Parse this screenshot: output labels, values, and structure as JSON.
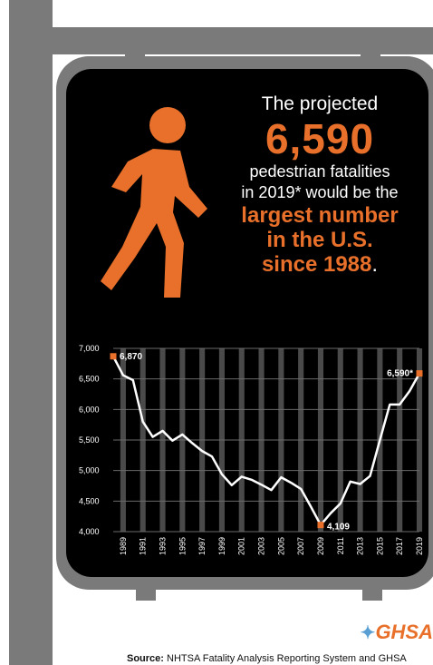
{
  "headline": {
    "lead": "The projected",
    "number": "6,590",
    "line1": "pedestrian fatalities",
    "line2": "in 2019* would be the",
    "emph1": "largest number",
    "emph2": "in the U.S.",
    "emph3": "since 1988",
    "period": "."
  },
  "colors": {
    "accent": "#e8702a",
    "sign": "#000000",
    "pole": "#7a7a7a",
    "line": "#ffffff",
    "stripe": "#4a4a4a"
  },
  "chart_data": {
    "type": "line",
    "title": "",
    "xlabel": "",
    "ylabel": "",
    "ylim": [
      4000,
      7000
    ],
    "yticks": [
      "7,000",
      "6,500",
      "6,000",
      "5,500",
      "5,000",
      "4,500",
      "4,000"
    ],
    "ytick_values": [
      7000,
      6500,
      6000,
      5500,
      5000,
      4500,
      4000
    ],
    "xtick_labels": [
      "1989",
      "1991",
      "1993",
      "1995",
      "1997",
      "1999",
      "2001",
      "2003",
      "2005",
      "2007",
      "2009",
      "2011",
      "2013",
      "2015",
      "2017",
      "2019"
    ],
    "grid": true,
    "series": [
      {
        "x": [
          1988,
          1989,
          1990,
          1991,
          1992,
          1993,
          1994,
          1995,
          1996,
          1997,
          1998,
          1999,
          2000,
          2001,
          2002,
          2003,
          2004,
          2005,
          2006,
          2007,
          2008,
          2009,
          2010,
          2011,
          2012,
          2013,
          2014,
          2015,
          2016,
          2017,
          2018,
          2019
        ],
        "values": [
          6870,
          6560,
          6480,
          5800,
          5550,
          5650,
          5490,
          5590,
          5450,
          5320,
          5230,
          4940,
          4760,
          4900,
          4850,
          4770,
          4680,
          4890,
          4800,
          4700,
          4410,
          4109,
          4300,
          4460,
          4820,
          4780,
          4910,
          5500,
          6080,
          6080,
          6300,
          6590
        ]
      }
    ],
    "annotations": [
      {
        "x": 1988,
        "y": 6870,
        "label": "6,870"
      },
      {
        "x": 2009,
        "y": 4109,
        "label": "4,109"
      },
      {
        "x": 2019,
        "y": 6590,
        "label": "6,590*"
      }
    ]
  },
  "logo": {
    "text": "GHSA",
    "icon": "star-icon"
  },
  "source": {
    "prefix": "Source:",
    "text": " NHTSA Fatality Analysis Reporting System and GHSA"
  }
}
